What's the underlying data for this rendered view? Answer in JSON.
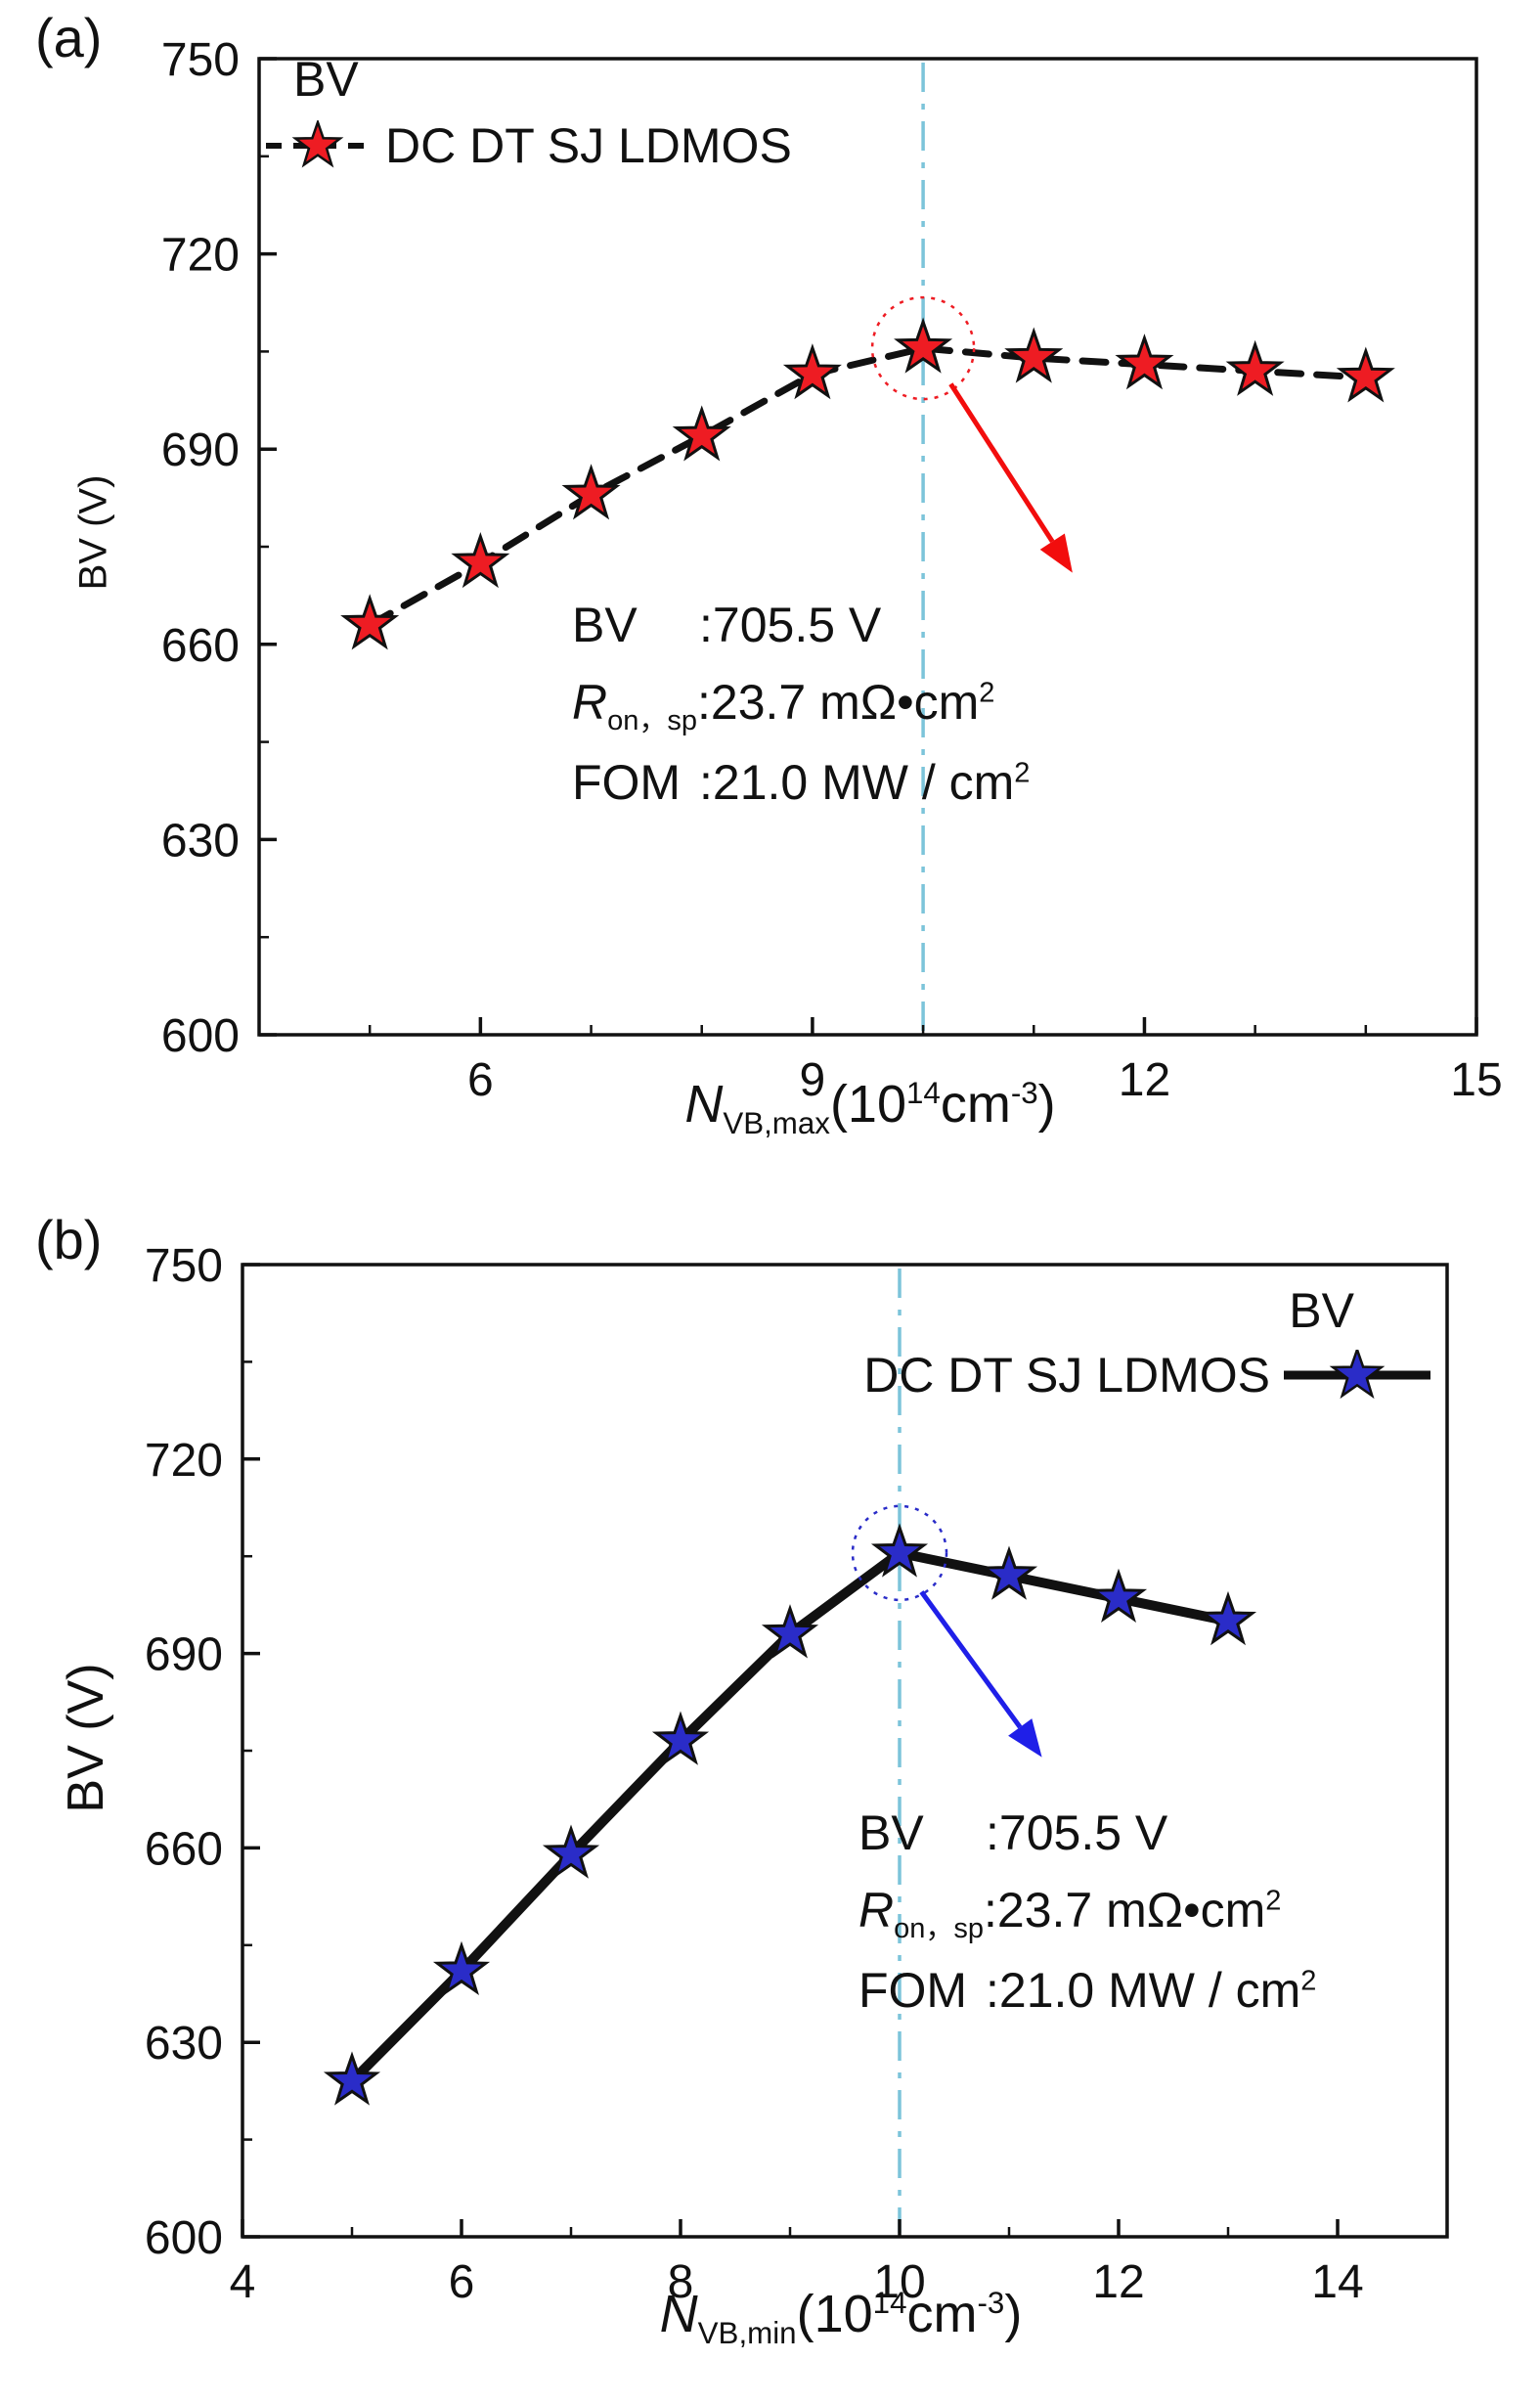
{
  "page": {
    "background": "#ffffff"
  },
  "panels": [
    {
      "label": "(a)",
      "ylabel": "BV (V)",
      "xlabel": {
        "n": "N",
        "sub": "VB,max",
        "pre": "(10",
        "sup": "14",
        "unit": "cm",
        "unit_sup": "-3",
        "close": ")"
      }
    },
    {
      "label": "(b)",
      "ylabel": "BV (V)",
      "xlabel": {
        "n": "N",
        "sub": "VB,min",
        "pre": "(10",
        "sup": "14",
        "unit": "cm",
        "unit_sup": "-3",
        "close": ")"
      }
    }
  ],
  "chart_data": [
    {
      "type": "line",
      "series_name": "DC DT SJ LDMOS",
      "x": [
        5,
        6,
        7,
        8,
        9,
        10,
        11,
        12,
        13,
        14
      ],
      "y": [
        663,
        672.5,
        683,
        692,
        701.5,
        705.5,
        704,
        703,
        702,
        701
      ],
      "xlim": [
        4,
        15
      ],
      "ylim": [
        600,
        750
      ],
      "xticks": [
        6,
        9,
        12,
        15
      ],
      "yticks": [
        600,
        630,
        660,
        690,
        720,
        750
      ],
      "x_minor_step": 1,
      "y_minor_step": 15,
      "line_style": "dashed",
      "line_width": 7,
      "line_color": "#111111",
      "marker": "star",
      "marker_color": "#ee1c23",
      "marker_size": 27,
      "guide_x": 10,
      "guide_color": "#7cc4da",
      "highlight": {
        "x": 10,
        "y": 705.5,
        "radius": 52,
        "color": "#ee1c23"
      },
      "arrow": {
        "x1": 10.25,
        "y1": 700,
        "x2": 11.35,
        "y2": 671,
        "color": "#f20d0d"
      },
      "legend": {
        "title": "BV",
        "entry": "DC DT SJ LDMOS",
        "position": "top-left"
      },
      "annotation": {
        "bv_label": "BV",
        "bv_value": ":705.5 V",
        "ron_r": "R",
        "ron_sub": "on，sp",
        "ron_value": ":23.7 mΩ•cm",
        "ron_sup": "2",
        "fom_label": "FOM",
        "fom_value": ":21.0 MW / cm",
        "fom_sup": "2"
      }
    },
    {
      "type": "line",
      "series_name": "DC DT SJ LDMOS",
      "x": [
        5,
        6,
        7,
        8,
        9,
        10,
        11,
        12,
        13
      ],
      "y": [
        624,
        641,
        659,
        676.5,
        693,
        705.5,
        702,
        698.5,
        695
      ],
      "xlim": [
        4,
        15
      ],
      "ylim": [
        600,
        750
      ],
      "xticks": [
        4,
        6,
        8,
        10,
        12,
        14
      ],
      "yticks": [
        600,
        630,
        660,
        690,
        720,
        750
      ],
      "x_minor_step": 1,
      "y_minor_step": 15,
      "line_style": "solid",
      "line_width": 10,
      "line_color": "#111111",
      "marker": "star",
      "marker_color": "#2a2cc8",
      "marker_size": 26,
      "guide_x": 10,
      "guide_color": "#7cc4da",
      "highlight": {
        "x": 10,
        "y": 705.5,
        "radius": 48,
        "color": "#2a2cc8"
      },
      "arrow": {
        "x1": 10.2,
        "y1": 699.5,
        "x2": 11.3,
        "y2": 674,
        "color": "#1f1fe8"
      },
      "legend": {
        "title": "BV",
        "entry": "DC DT SJ LDMOS",
        "position": "top-right"
      },
      "annotation": {
        "bv_label": "BV",
        "bv_value": ":705.5 V",
        "ron_r": "R",
        "ron_sub": "on，sp",
        "ron_value": ":23.7 mΩ•cm",
        "ron_sup": "2",
        "fom_label": "FOM",
        "fom_value": ":21.0 MW / cm",
        "fom_sup": "2"
      }
    }
  ]
}
